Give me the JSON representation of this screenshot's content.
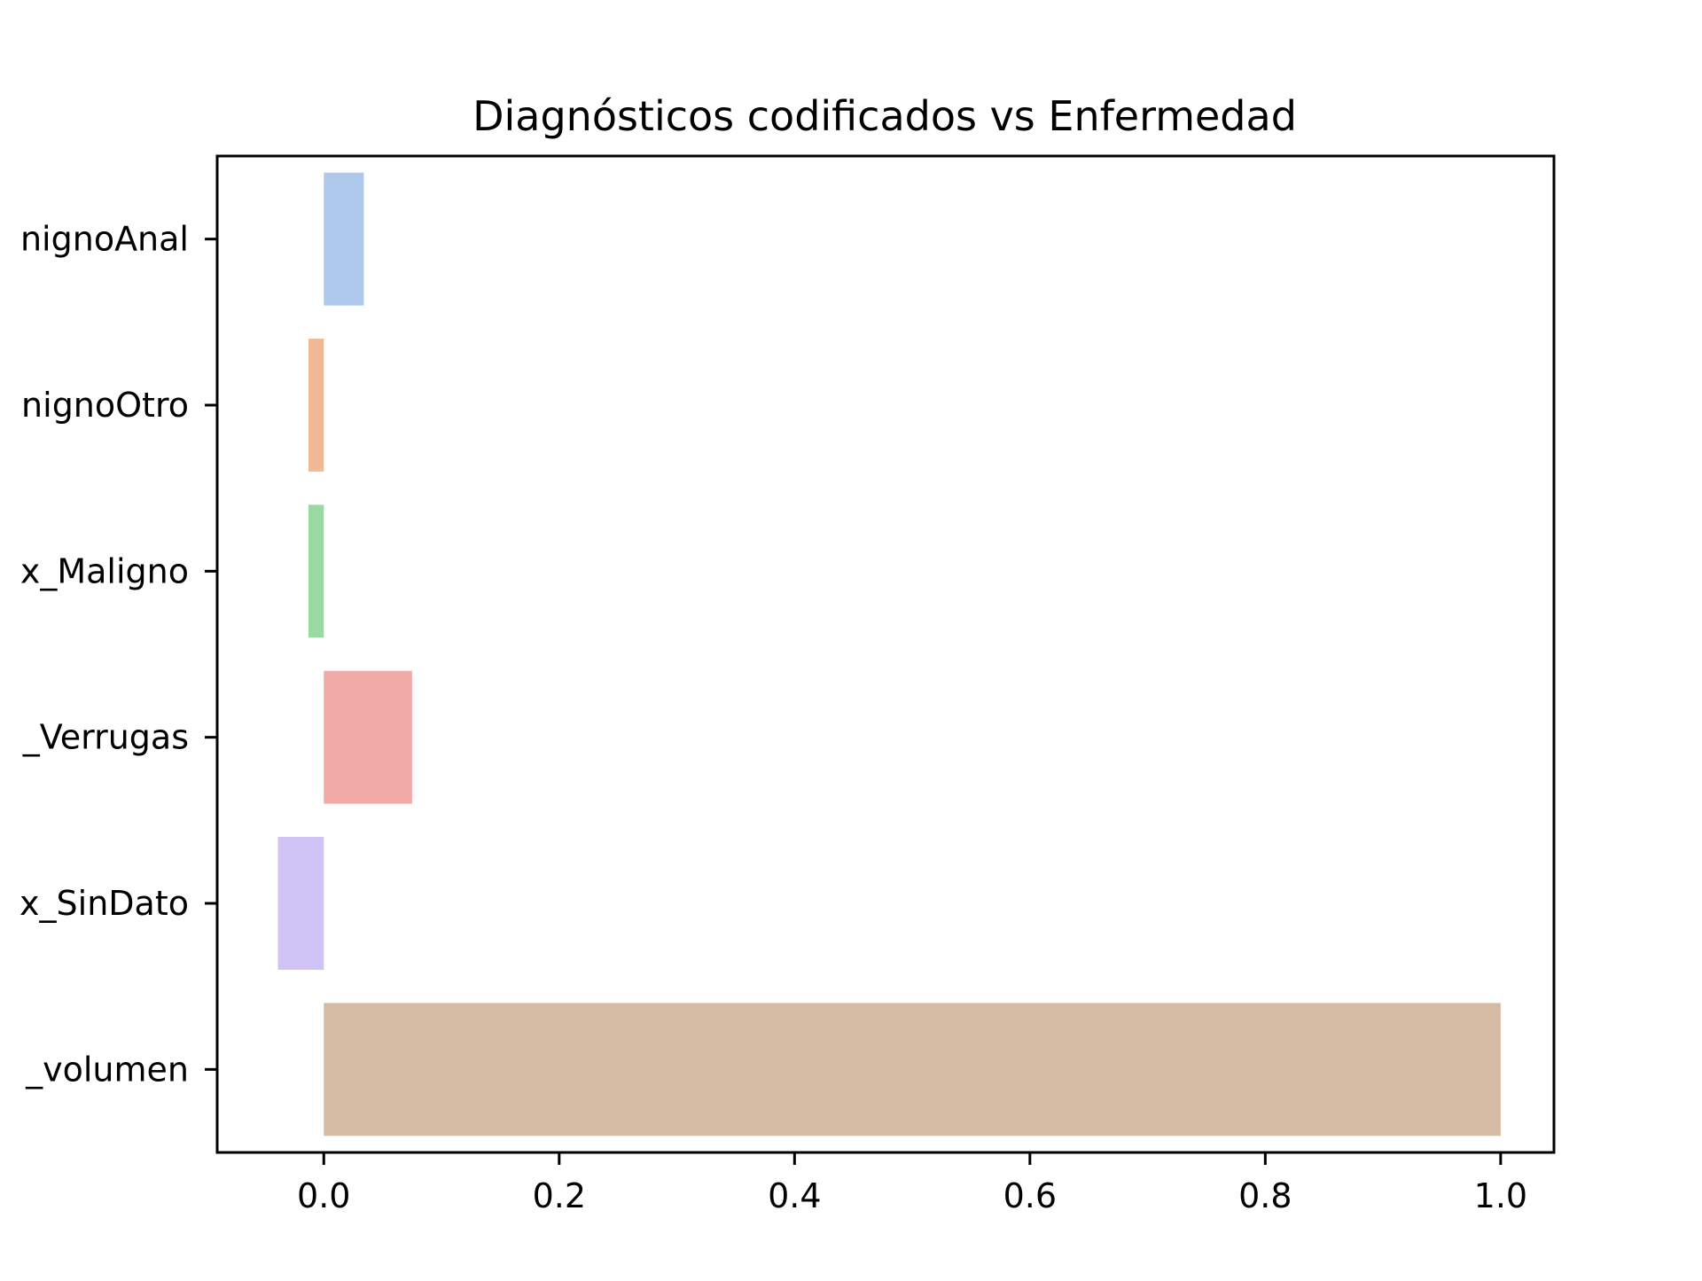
{
  "chart_data": {
    "type": "bar",
    "orientation": "horizontal",
    "title": "Diagnósticos codificados vs Enfermedad",
    "xlabel": "",
    "ylabel": "",
    "categories": [
      "nignoAnal",
      "nignoOtro",
      "x_Maligno",
      "_Verrugas",
      "x_SinDato",
      "_volumen"
    ],
    "values": [
      0.034,
      -0.013,
      -0.013,
      0.075,
      -0.039,
      1.0
    ],
    "colors": [
      "#aec9ec",
      "#f0b994",
      "#9bd9a3",
      "#f2aaa7",
      "#d0c3f5",
      "#d5bba3"
    ],
    "xlim": [
      -0.0906,
      1.0453
    ],
    "xticks": [
      "0.0",
      "0.2",
      "0.4",
      "0.6",
      "0.8",
      "1.0"
    ],
    "grid": false,
    "legend": "none"
  }
}
